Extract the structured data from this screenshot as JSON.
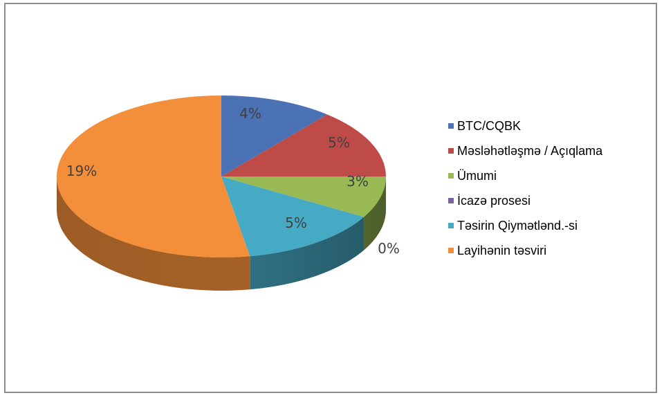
{
  "chart_data": {
    "type": "pie",
    "style": "3d",
    "title": "",
    "legend_position": "right",
    "slices": [
      {
        "name": "BTC/CQBK",
        "value": 4,
        "label": "4%",
        "color": "#4a72b4"
      },
      {
        "name": "Məsləhətləşmə / Açıqlama",
        "value": 5,
        "label": "5%",
        "color": "#be4b48"
      },
      {
        "name": "Ümumi",
        "value": 3,
        "label": "3%",
        "color": "#98b954"
      },
      {
        "name": "İcazə prosesi",
        "value": 0,
        "label": "0%",
        "color": "#7d60a0"
      },
      {
        "name": "Təsirin Qiymətlənd.-si",
        "value": 5,
        "label": "5%",
        "color": "#46aac5"
      },
      {
        "name": "Layihənin təsviri",
        "value": 19,
        "label": "19%",
        "color": "#f38e3a"
      }
    ]
  }
}
